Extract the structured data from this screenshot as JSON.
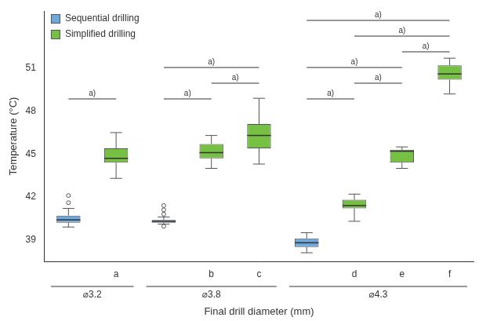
{
  "chart_data": {
    "type": "boxplot",
    "x_label": "Final drill diameter (mm)",
    "y_label": "Temperature (°C)",
    "categories": [
      null,
      "a",
      null,
      "b",
      "c",
      null,
      "d",
      "e",
      "f"
    ],
    "groups": [
      {
        "label": "⌀3.2",
        "from": 0,
        "to": 1
      },
      {
        "label": "⌀3.8",
        "from": 2,
        "to": 4
      },
      {
        "label": "⌀4.3",
        "from": 5,
        "to": 8
      }
    ],
    "series": [
      {
        "name": "Sequential drilling",
        "color": "#6fa8dc",
        "values": [
          {
            "min": 39.9,
            "q1": 40.2,
            "median": 40.4,
            "q3": 40.7,
            "max": 41.2,
            "outliers": [
              41.6,
              42.1
            ]
          },
          null,
          {
            "min": 40.1,
            "q1": 40.2,
            "median": 40.3,
            "q3": 40.4,
            "max": 40.6,
            "outliers": [
              39.95,
              40.8,
              41.1,
              41.4
            ]
          },
          null,
          null,
          {
            "min": 38.1,
            "q1": 38.5,
            "median": 38.8,
            "q3": 39.1,
            "max": 39.5,
            "outliers": []
          },
          null,
          null,
          null
        ]
      },
      {
        "name": "Simplified drilling",
        "color": "#76c043",
        "values": [
          null,
          {
            "min": 43.3,
            "q1": 44.4,
            "median": 44.7,
            "q3": 45.4,
            "max": 46.5,
            "outliers": []
          },
          null,
          {
            "min": 44.0,
            "q1": 44.7,
            "median": 45.1,
            "q3": 45.7,
            "max": 46.3,
            "outliers": []
          },
          {
            "min": 44.3,
            "q1": 45.4,
            "median": 46.3,
            "q3": 47.1,
            "max": 48.9,
            "outliers": []
          },
          null,
          {
            "min": 40.3,
            "q1": 41.2,
            "median": 41.4,
            "q3": 41.8,
            "max": 42.2,
            "outliers": []
          },
          {
            "min": 44.0,
            "q1": 44.4,
            "median": 45.2,
            "q3": 45.3,
            "max": 45.5,
            "outliers": []
          },
          {
            "min": 49.2,
            "q1": 50.2,
            "median": 50.6,
            "q3": 51.2,
            "max": 51.7,
            "outliers": []
          }
        ]
      }
    ],
    "brackets": [
      {
        "from": 0,
        "to": 1,
        "label": "a)"
      },
      {
        "from": 2,
        "to": 3,
        "label": "a)"
      },
      {
        "from": 3,
        "to": 4,
        "label": "a)"
      },
      {
        "from": 2,
        "to": 4,
        "label": "a)"
      },
      {
        "from": 5,
        "to": 6,
        "label": "a)"
      },
      {
        "from": 6,
        "to": 7,
        "label": "a)"
      },
      {
        "from": 5,
        "to": 7,
        "label": "a)"
      },
      {
        "from": 7,
        "to": 8,
        "label": "a)"
      },
      {
        "from": 6,
        "to": 8,
        "label": "a)"
      },
      {
        "from": 5,
        "to": 8,
        "label": "a)"
      }
    ],
    "ylim": [
      37.5,
      55
    ],
    "yticks": [
      39,
      42,
      45,
      48,
      51
    ],
    "grid": false,
    "legend": "upper left"
  }
}
